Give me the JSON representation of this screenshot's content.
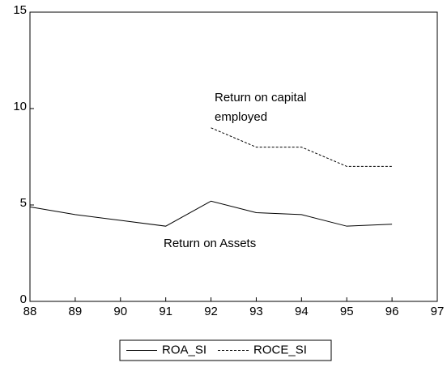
{
  "chart_data": {
    "type": "line",
    "x": [
      88,
      89,
      90,
      91,
      92,
      93,
      94,
      95,
      96
    ],
    "series": [
      {
        "name": "ROA_SI",
        "color": "#000000",
        "dashed": false,
        "values": [
          4.9,
          4.5,
          4.2,
          3.9,
          5.2,
          4.6,
          4.5,
          3.9,
          4.0
        ]
      },
      {
        "name": "ROCE_SI",
        "color": "#000000",
        "dashed": true,
        "values": [
          null,
          null,
          null,
          null,
          9.0,
          8.0,
          8.0,
          7.0,
          7.0
        ]
      }
    ],
    "xlim": [
      88,
      97
    ],
    "xticks": [
      88,
      89,
      90,
      91,
      92,
      93,
      94,
      95,
      96,
      97
    ],
    "ylim": [
      0,
      15
    ],
    "yticks": [
      0,
      5,
      10,
      15
    ],
    "grid": false,
    "annotations": [
      "Return on capital",
      "employed",
      "Return on Assets"
    ],
    "legend": "bottom"
  }
}
